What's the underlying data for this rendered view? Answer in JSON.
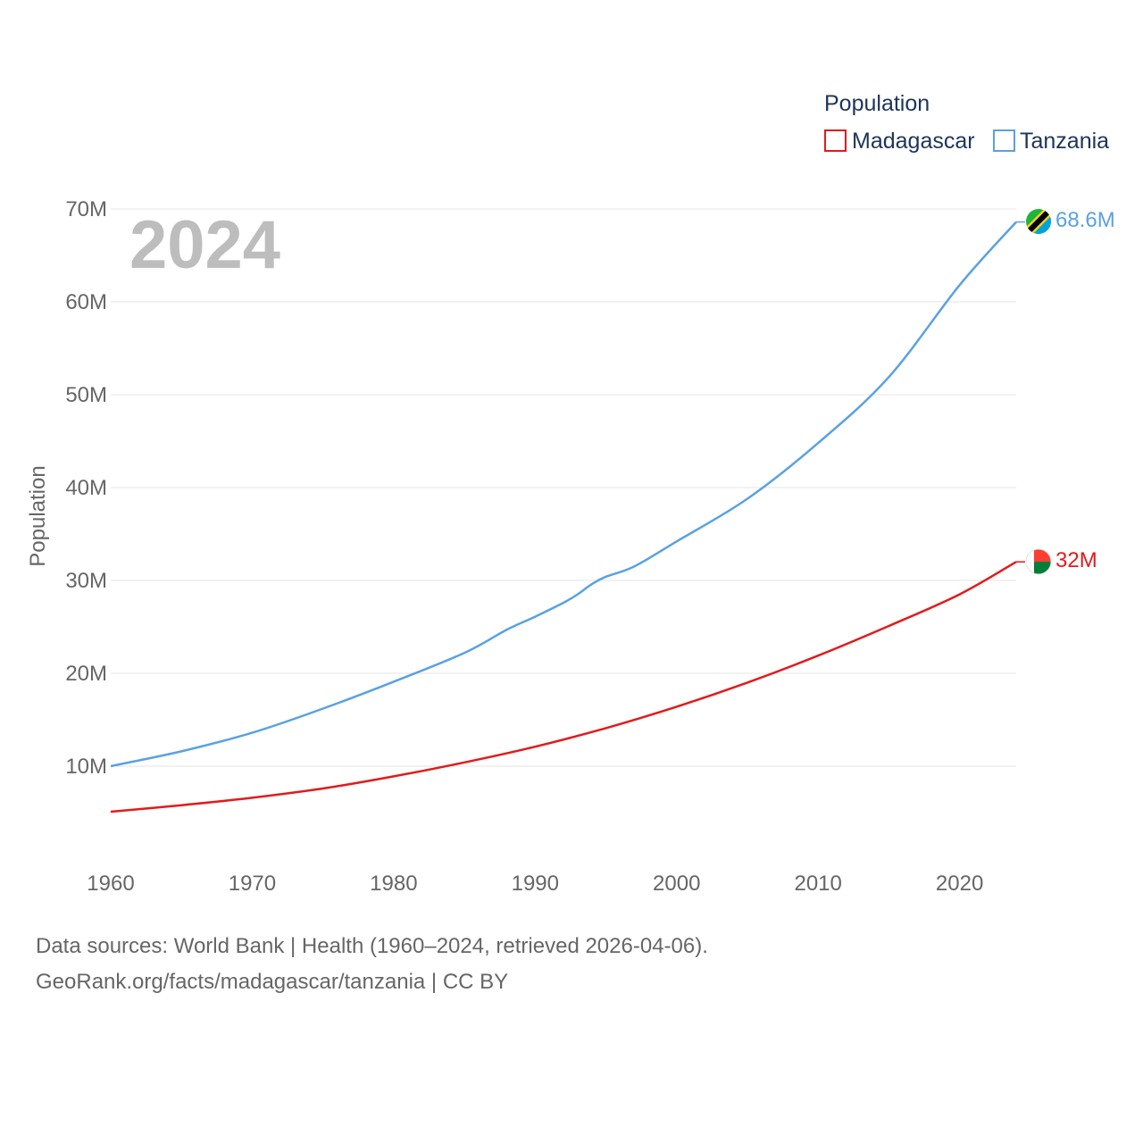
{
  "chart_data": {
    "type": "line",
    "title": "Population",
    "current_year": "2024",
    "xlabel": "",
    "ylabel": "Population",
    "xlim": [
      1960,
      2024
    ],
    "ylim": [
      0,
      70000000
    ],
    "x_ticks": [
      1960,
      1970,
      1980,
      1990,
      2000,
      2010,
      2020
    ],
    "x_tick_labels": [
      "1960",
      "1970",
      "1980",
      "1990",
      "2000",
      "2010",
      "2020"
    ],
    "y_ticks": [
      10000000,
      20000000,
      30000000,
      40000000,
      50000000,
      60000000,
      70000000
    ],
    "y_tick_labels": [
      "10M",
      "20M",
      "30M",
      "40M",
      "50M",
      "60M",
      "70M"
    ],
    "legend_title": "Population",
    "series": [
      {
        "name": "Madagascar",
        "color": "#e31a1c",
        "end_label": "32M",
        "points": [
          [
            1960,
            5100000
          ],
          [
            1965,
            5800000
          ],
          [
            1970,
            6600000
          ],
          [
            1975,
            7600000
          ],
          [
            1980,
            8900000
          ],
          [
            1985,
            10400000
          ],
          [
            1990,
            12100000
          ],
          [
            1995,
            14100000
          ],
          [
            2000,
            16400000
          ],
          [
            2005,
            19000000
          ],
          [
            2010,
            21900000
          ],
          [
            2015,
            25100000
          ],
          [
            2020,
            28500000
          ],
          [
            2024,
            32000000
          ]
        ]
      },
      {
        "name": "Tanzania",
        "color": "#5aa1e3",
        "end_label": "68.6M",
        "points": [
          [
            1960,
            10000000
          ],
          [
            1965,
            11600000
          ],
          [
            1970,
            13600000
          ],
          [
            1975,
            16200000
          ],
          [
            1980,
            19100000
          ],
          [
            1985,
            22200000
          ],
          [
            1988,
            24700000
          ],
          [
            1990,
            26100000
          ],
          [
            1992,
            27600000
          ],
          [
            1993,
            28500000
          ],
          [
            1994,
            29600000
          ],
          [
            1995,
            30400000
          ],
          [
            1997,
            31500000
          ],
          [
            2000,
            34200000
          ],
          [
            2005,
            38800000
          ],
          [
            2010,
            44800000
          ],
          [
            2015,
            51900000
          ],
          [
            2020,
            61800000
          ],
          [
            2024,
            68600000
          ]
        ]
      }
    ]
  },
  "source_line1": "Data sources: World Bank | Health (1960–2024, retrieved 2026-04-06).",
  "source_line2": "GeoRank.org/facts/madagascar/tanzania | CC BY",
  "flags": [
    {
      "country": "Tanzania",
      "icon": "tanzania-flag-icon"
    },
    {
      "country": "Madagascar",
      "icon": "madagascar-flag-icon"
    }
  ],
  "colors": {
    "grid": "#e6e6e6",
    "tick_text": "#666666",
    "year_watermark": "#bdbdbd",
    "legend_text": "#1d3557"
  }
}
